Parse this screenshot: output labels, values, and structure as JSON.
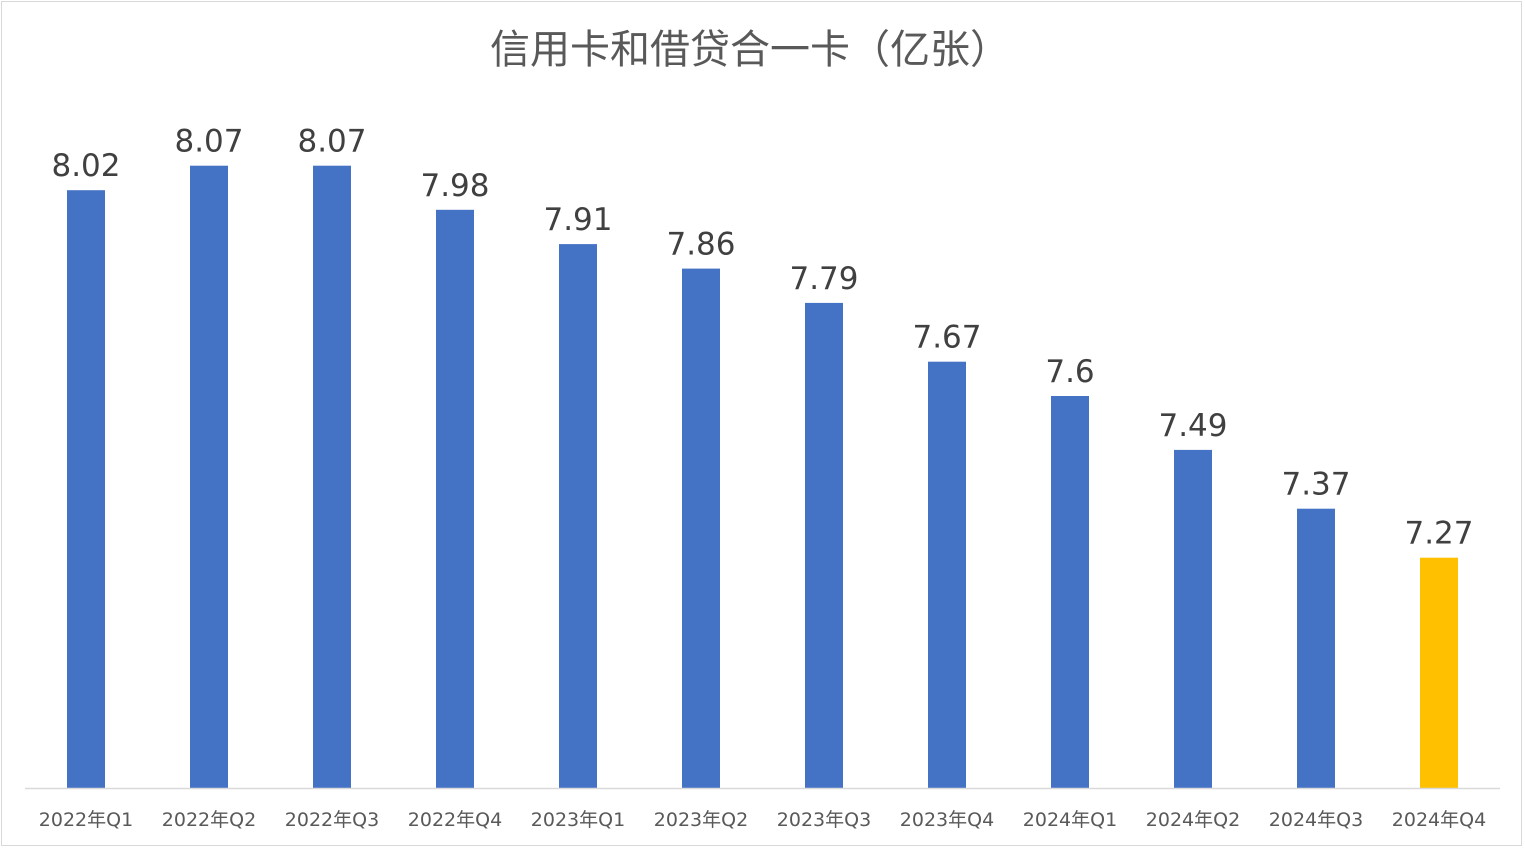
{
  "chart_data": {
    "type": "bar",
    "title": "信用卡和借贷合一卡（亿张）",
    "xlabel": "",
    "ylabel": "",
    "categories": [
      "2022年Q1",
      "2022年Q2",
      "2022年Q3",
      "2022年Q4",
      "2023年Q1",
      "2023年Q2",
      "2023年Q3",
      "2023年Q4",
      "2024年Q1",
      "2024年Q2",
      "2024年Q3",
      "2024年Q4"
    ],
    "values": [
      8.02,
      8.07,
      8.07,
      7.98,
      7.91,
      7.86,
      7.79,
      7.67,
      7.6,
      7.49,
      7.37,
      7.27
    ],
    "data_labels": [
      "8.02",
      "8.07",
      "8.07",
      "7.98",
      "7.91",
      "7.86",
      "7.79",
      "7.67",
      "7.6",
      "7.49",
      "7.37",
      "7.27"
    ],
    "ylim": [
      6.8,
      8.2
    ],
    "y_axis_visible": false,
    "grid": false,
    "legend": "none",
    "colors": {
      "default": "#4472C4",
      "highlight": "#FFC000",
      "highlight_index": 11
    }
  }
}
